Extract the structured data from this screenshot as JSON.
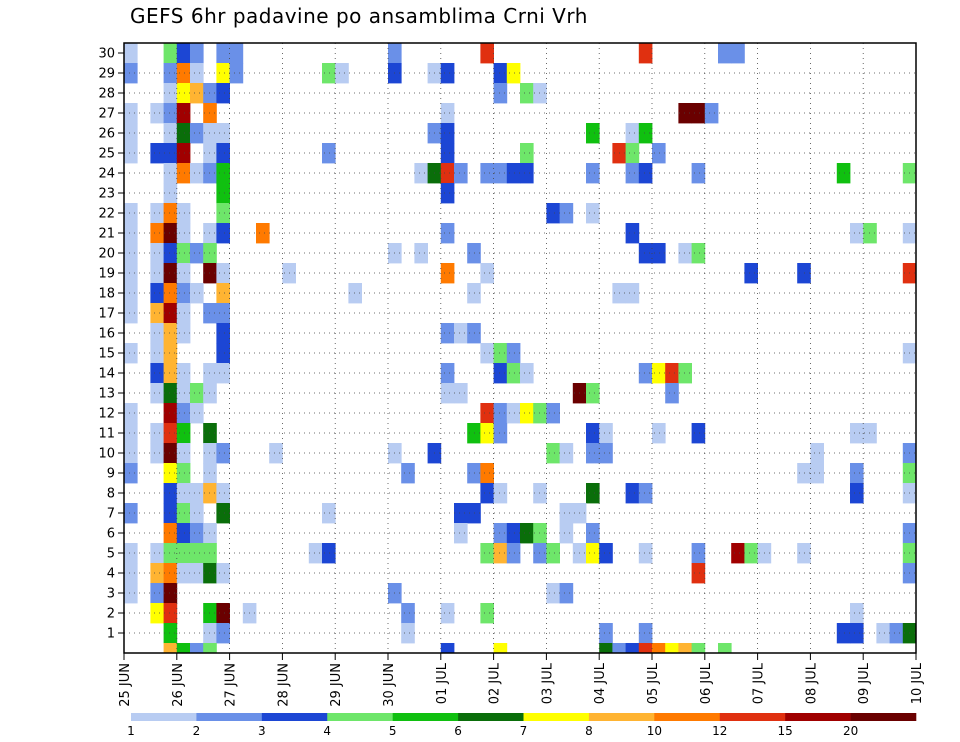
{
  "chart_data": {
    "type": "heatmap",
    "title": "GEFS 6hr padavine po ansamblima Crni Vrh",
    "x_tick_labels": [
      "25 JUN",
      "26 JUN",
      "27 JUN",
      "28 JUN",
      "29 JUN",
      "30 JUN",
      "01 JUL",
      "02 JUL",
      "03 JUL",
      "04 JUL",
      "05 JUL",
      "06 JUL",
      "07 JUL",
      "08 JUL",
      "09 JUL",
      "10 JUL"
    ],
    "y_tick_labels": [
      "1",
      "2",
      "3",
      "4",
      "5",
      "6",
      "7",
      "8",
      "9",
      "10",
      "11",
      "12",
      "13",
      "14",
      "15",
      "16",
      "17",
      "18",
      "19",
      "20",
      "21",
      "22",
      "23",
      "24",
      "25",
      "26",
      "27",
      "28",
      "29",
      "30"
    ],
    "x_range_steps": [
      0,
      60
    ],
    "y_range_members": [
      0,
      30
    ],
    "grid": true,
    "legend": {
      "placement": "bottom",
      "levels": [
        "1",
        "2",
        "3",
        "4",
        "5",
        "6",
        "7",
        "8",
        "10",
        "12",
        "15",
        "20"
      ],
      "colors": [
        "#b8ccf2",
        "#6a90e8",
        "#1c46d4",
        "#6ee66a",
        "#10c010",
        "#0a6e0a",
        "#ffff00",
        "#ffb432",
        "#ff7a00",
        "#e03010",
        "#a00000",
        "#6a0000"
      ]
    },
    "cells": [
      [
        0,
        30,
        0
      ],
      [
        3,
        30,
        3
      ],
      [
        4,
        30,
        2
      ],
      [
        5,
        30,
        1
      ],
      [
        7,
        30,
        1
      ],
      [
        8,
        30,
        1
      ],
      [
        20,
        30,
        1
      ],
      [
        27,
        30,
        9
      ],
      [
        39,
        30,
        9
      ],
      [
        45,
        30,
        1
      ],
      [
        46,
        30,
        1
      ],
      [
        0,
        29,
        1
      ],
      [
        3,
        29,
        1
      ],
      [
        4,
        29,
        8
      ],
      [
        5,
        29,
        0
      ],
      [
        7,
        29,
        6
      ],
      [
        8,
        29,
        1
      ],
      [
        15,
        29,
        3
      ],
      [
        16,
        29,
        0
      ],
      [
        20,
        29,
        2
      ],
      [
        23,
        29,
        0
      ],
      [
        24,
        29,
        2
      ],
      [
        28,
        29,
        2
      ],
      [
        29,
        29,
        6
      ],
      [
        3,
        28,
        0
      ],
      [
        4,
        28,
        6
      ],
      [
        5,
        28,
        7
      ],
      [
        6,
        28,
        1
      ],
      [
        7,
        28,
        2
      ],
      [
        28,
        28,
        1
      ],
      [
        30,
        28,
        3
      ],
      [
        31,
        28,
        0
      ],
      [
        0,
        27,
        0
      ],
      [
        2,
        27,
        0
      ],
      [
        3,
        27,
        1
      ],
      [
        4,
        27,
        10
      ],
      [
        6,
        27,
        8
      ],
      [
        24,
        27,
        0
      ],
      [
        42,
        27,
        11
      ],
      [
        43,
        27,
        11
      ],
      [
        44,
        27,
        1
      ],
      [
        0,
        26,
        0
      ],
      [
        3,
        26,
        0
      ],
      [
        4,
        26,
        5
      ],
      [
        5,
        26,
        1
      ],
      [
        6,
        26,
        0
      ],
      [
        7,
        26,
        0
      ],
      [
        23,
        26,
        1
      ],
      [
        24,
        26,
        2
      ],
      [
        35,
        26,
        4
      ],
      [
        38,
        26,
        0
      ],
      [
        39,
        26,
        4
      ],
      [
        0,
        25,
        0
      ],
      [
        2,
        25,
        2
      ],
      [
        3,
        25,
        2
      ],
      [
        4,
        25,
        10
      ],
      [
        6,
        25,
        0
      ],
      [
        7,
        25,
        2
      ],
      [
        15,
        25,
        1
      ],
      [
        24,
        25,
        2
      ],
      [
        30,
        25,
        3
      ],
      [
        37,
        25,
        9
      ],
      [
        38,
        25,
        3
      ],
      [
        40,
        25,
        1
      ],
      [
        3,
        24,
        0
      ],
      [
        4,
        24,
        8
      ],
      [
        5,
        24,
        0
      ],
      [
        6,
        24,
        1
      ],
      [
        7,
        24,
        4
      ],
      [
        22,
        24,
        0
      ],
      [
        23,
        24,
        5
      ],
      [
        24,
        24,
        9
      ],
      [
        25,
        24,
        1
      ],
      [
        27,
        24,
        1
      ],
      [
        28,
        24,
        1
      ],
      [
        29,
        24,
        2
      ],
      [
        30,
        24,
        2
      ],
      [
        35,
        24,
        1
      ],
      [
        38,
        24,
        1
      ],
      [
        39,
        24,
        2
      ],
      [
        43,
        24,
        1
      ],
      [
        54,
        24,
        4
      ],
      [
        59,
        24,
        3
      ],
      [
        3,
        23,
        0
      ],
      [
        7,
        23,
        4
      ],
      [
        24,
        23,
        2
      ],
      [
        0,
        22,
        0
      ],
      [
        2,
        22,
        0
      ],
      [
        3,
        22,
        8
      ],
      [
        4,
        22,
        0
      ],
      [
        7,
        22,
        3
      ],
      [
        32,
        22,
        2
      ],
      [
        33,
        22,
        1
      ],
      [
        35,
        22,
        0
      ],
      [
        0,
        21,
        0
      ],
      [
        2,
        21,
        8
      ],
      [
        3,
        21,
        11
      ],
      [
        4,
        21,
        0
      ],
      [
        6,
        21,
        0
      ],
      [
        7,
        21,
        2
      ],
      [
        10,
        21,
        8
      ],
      [
        24,
        21,
        1
      ],
      [
        38,
        21,
        2
      ],
      [
        55,
        21,
        0
      ],
      [
        56,
        21,
        3
      ],
      [
        59,
        21,
        0
      ],
      [
        0,
        20,
        0
      ],
      [
        2,
        20,
        0
      ],
      [
        3,
        20,
        2
      ],
      [
        4,
        20,
        3
      ],
      [
        5,
        20,
        1
      ],
      [
        6,
        20,
        3
      ],
      [
        20,
        20,
        0
      ],
      [
        22,
        20,
        0
      ],
      [
        26,
        20,
        1
      ],
      [
        39,
        20,
        2
      ],
      [
        40,
        20,
        2
      ],
      [
        42,
        20,
        0
      ],
      [
        43,
        20,
        3
      ],
      [
        0,
        19,
        0
      ],
      [
        2,
        19,
        0
      ],
      [
        3,
        19,
        11
      ],
      [
        4,
        19,
        0
      ],
      [
        6,
        19,
        11
      ],
      [
        7,
        19,
        0
      ],
      [
        12,
        19,
        0
      ],
      [
        24,
        19,
        8
      ],
      [
        27,
        19,
        0
      ],
      [
        47,
        19,
        2
      ],
      [
        51,
        19,
        2
      ],
      [
        59,
        19,
        9
      ],
      [
        0,
        18,
        0
      ],
      [
        2,
        18,
        2
      ],
      [
        3,
        18,
        8
      ],
      [
        4,
        18,
        1
      ],
      [
        5,
        18,
        0
      ],
      [
        7,
        18,
        7
      ],
      [
        17,
        18,
        0
      ],
      [
        26,
        18,
        0
      ],
      [
        37,
        18,
        0
      ],
      [
        38,
        18,
        0
      ],
      [
        0,
        17,
        0
      ],
      [
        2,
        17,
        7
      ],
      [
        3,
        17,
        10
      ],
      [
        4,
        17,
        0
      ],
      [
        6,
        17,
        1
      ],
      [
        7,
        17,
        1
      ],
      [
        2,
        16,
        0
      ],
      [
        3,
        16,
        7
      ],
      [
        4,
        16,
        0
      ],
      [
        7,
        16,
        2
      ],
      [
        24,
        16,
        1
      ],
      [
        25,
        16,
        0
      ],
      [
        26,
        16,
        1
      ],
      [
        0,
        15,
        0
      ],
      [
        2,
        15,
        0
      ],
      [
        3,
        15,
        7
      ],
      [
        7,
        15,
        2
      ],
      [
        27,
        15,
        0
      ],
      [
        28,
        15,
        3
      ],
      [
        29,
        15,
        1
      ],
      [
        59,
        15,
        0
      ],
      [
        2,
        14,
        2
      ],
      [
        3,
        14,
        7
      ],
      [
        4,
        14,
        0
      ],
      [
        6,
        14,
        0
      ],
      [
        7,
        14,
        0
      ],
      [
        24,
        14,
        1
      ],
      [
        28,
        14,
        2
      ],
      [
        29,
        14,
        3
      ],
      [
        30,
        14,
        0
      ],
      [
        39,
        14,
        1
      ],
      [
        40,
        14,
        6
      ],
      [
        41,
        14,
        9
      ],
      [
        42,
        14,
        3
      ],
      [
        2,
        13,
        0
      ],
      [
        3,
        13,
        5
      ],
      [
        4,
        13,
        0
      ],
      [
        5,
        13,
        3
      ],
      [
        6,
        13,
        0
      ],
      [
        24,
        13,
        0
      ],
      [
        25,
        13,
        0
      ],
      [
        34,
        13,
        11
      ],
      [
        35,
        13,
        3
      ],
      [
        41,
        13,
        1
      ],
      [
        0,
        12,
        0
      ],
      [
        3,
        12,
        10
      ],
      [
        4,
        12,
        1
      ],
      [
        5,
        12,
        0
      ],
      [
        27,
        12,
        9
      ],
      [
        28,
        12,
        1
      ],
      [
        29,
        12,
        0
      ],
      [
        30,
        12,
        6
      ],
      [
        31,
        12,
        3
      ],
      [
        32,
        12,
        1
      ],
      [
        0,
        11,
        0
      ],
      [
        2,
        11,
        0
      ],
      [
        3,
        11,
        9
      ],
      [
        4,
        11,
        4
      ],
      [
        6,
        11,
        5
      ],
      [
        26,
        11,
        4
      ],
      [
        27,
        11,
        6
      ],
      [
        28,
        11,
        1
      ],
      [
        35,
        11,
        2
      ],
      [
        36,
        11,
        0
      ],
      [
        40,
        11,
        0
      ],
      [
        43,
        11,
        2
      ],
      [
        55,
        11,
        0
      ],
      [
        56,
        11,
        0
      ],
      [
        0,
        10,
        0
      ],
      [
        2,
        10,
        0
      ],
      [
        3,
        10,
        11
      ],
      [
        4,
        10,
        0
      ],
      [
        6,
        10,
        0
      ],
      [
        7,
        10,
        1
      ],
      [
        11,
        10,
        0
      ],
      [
        20,
        10,
        0
      ],
      [
        23,
        10,
        2
      ],
      [
        32,
        10,
        3
      ],
      [
        33,
        10,
        0
      ],
      [
        35,
        10,
        1
      ],
      [
        36,
        10,
        1
      ],
      [
        52,
        10,
        0
      ],
      [
        59,
        10,
        1
      ],
      [
        0,
        9,
        1
      ],
      [
        3,
        9,
        6
      ],
      [
        4,
        9,
        3
      ],
      [
        6,
        9,
        0
      ],
      [
        21,
        9,
        1
      ],
      [
        26,
        9,
        1
      ],
      [
        27,
        9,
        8
      ],
      [
        51,
        9,
        0
      ],
      [
        52,
        9,
        0
      ],
      [
        55,
        9,
        1
      ],
      [
        59,
        9,
        3
      ],
      [
        3,
        8,
        2
      ],
      [
        4,
        8,
        0
      ],
      [
        5,
        8,
        0
      ],
      [
        6,
        8,
        7
      ],
      [
        7,
        8,
        0
      ],
      [
        27,
        8,
        2
      ],
      [
        28,
        8,
        0
      ],
      [
        31,
        8,
        0
      ],
      [
        35,
        8,
        5
      ],
      [
        38,
        8,
        2
      ],
      [
        39,
        8,
        1
      ],
      [
        55,
        8,
        2
      ],
      [
        59,
        8,
        0
      ],
      [
        0,
        7,
        1
      ],
      [
        3,
        7,
        2
      ],
      [
        4,
        7,
        3
      ],
      [
        5,
        7,
        0
      ],
      [
        7,
        7,
        5
      ],
      [
        15,
        7,
        0
      ],
      [
        25,
        7,
        2
      ],
      [
        26,
        7,
        2
      ],
      [
        33,
        7,
        0
      ],
      [
        34,
        7,
        0
      ],
      [
        3,
        6,
        8
      ],
      [
        4,
        6,
        2
      ],
      [
        5,
        6,
        1
      ],
      [
        6,
        6,
        0
      ],
      [
        25,
        6,
        0
      ],
      [
        28,
        6,
        1
      ],
      [
        29,
        6,
        2
      ],
      [
        30,
        6,
        5
      ],
      [
        31,
        6,
        3
      ],
      [
        33,
        6,
        0
      ],
      [
        35,
        6,
        1
      ],
      [
        59,
        6,
        1
      ],
      [
        0,
        5,
        0
      ],
      [
        2,
        5,
        0
      ],
      [
        3,
        5,
        3
      ],
      [
        4,
        5,
        3
      ],
      [
        5,
        5,
        3
      ],
      [
        6,
        5,
        3
      ],
      [
        14,
        5,
        0
      ],
      [
        15,
        5,
        2
      ],
      [
        27,
        5,
        3
      ],
      [
        28,
        5,
        7
      ],
      [
        29,
        5,
        1
      ],
      [
        31,
        5,
        1
      ],
      [
        32,
        5,
        3
      ],
      [
        34,
        5,
        0
      ],
      [
        35,
        5,
        6
      ],
      [
        36,
        5,
        2
      ],
      [
        39,
        5,
        0
      ],
      [
        43,
        5,
        1
      ],
      [
        46,
        5,
        10
      ],
      [
        47,
        5,
        3
      ],
      [
        48,
        5,
        0
      ],
      [
        51,
        5,
        0
      ],
      [
        59,
        5,
        3
      ],
      [
        0,
        4,
        0
      ],
      [
        2,
        4,
        7
      ],
      [
        3,
        4,
        8
      ],
      [
        4,
        4,
        0
      ],
      [
        5,
        4,
        0
      ],
      [
        6,
        4,
        5
      ],
      [
        7,
        4,
        0
      ],
      [
        43,
        4,
        9
      ],
      [
        59,
        4,
        1
      ],
      [
        0,
        3,
        0
      ],
      [
        2,
        3,
        1
      ],
      [
        3,
        3,
        11
      ],
      [
        20,
        3,
        1
      ],
      [
        32,
        3,
        0
      ],
      [
        33,
        3,
        1
      ],
      [
        2,
        2,
        6
      ],
      [
        3,
        2,
        9
      ],
      [
        6,
        2,
        4
      ],
      [
        7,
        2,
        11
      ],
      [
        9,
        2,
        0
      ],
      [
        21,
        2,
        1
      ],
      [
        24,
        2,
        0
      ],
      [
        27,
        2,
        3
      ],
      [
        55,
        2,
        0
      ],
      [
        3,
        1,
        4
      ],
      [
        6,
        1,
        0
      ],
      [
        7,
        1,
        1
      ],
      [
        21,
        1,
        0
      ],
      [
        36,
        1,
        1
      ],
      [
        39,
        1,
        1
      ],
      [
        54,
        1,
        2
      ],
      [
        55,
        1,
        2
      ],
      [
        57,
        1,
        0
      ],
      [
        58,
        1,
        1
      ],
      [
        59,
        1,
        5
      ],
      [
        3,
        0,
        7
      ],
      [
        4,
        0,
        4
      ],
      [
        5,
        0,
        1
      ],
      [
        6,
        0,
        3
      ],
      [
        24,
        0,
        2
      ],
      [
        28,
        0,
        6
      ],
      [
        36,
        0,
        5
      ],
      [
        37,
        0,
        1
      ],
      [
        38,
        0,
        2
      ],
      [
        39,
        0,
        9
      ],
      [
        40,
        0,
        8
      ],
      [
        41,
        0,
        6
      ],
      [
        42,
        0,
        7
      ],
      [
        43,
        0,
        3
      ],
      [
        45,
        0,
        3
      ]
    ]
  }
}
